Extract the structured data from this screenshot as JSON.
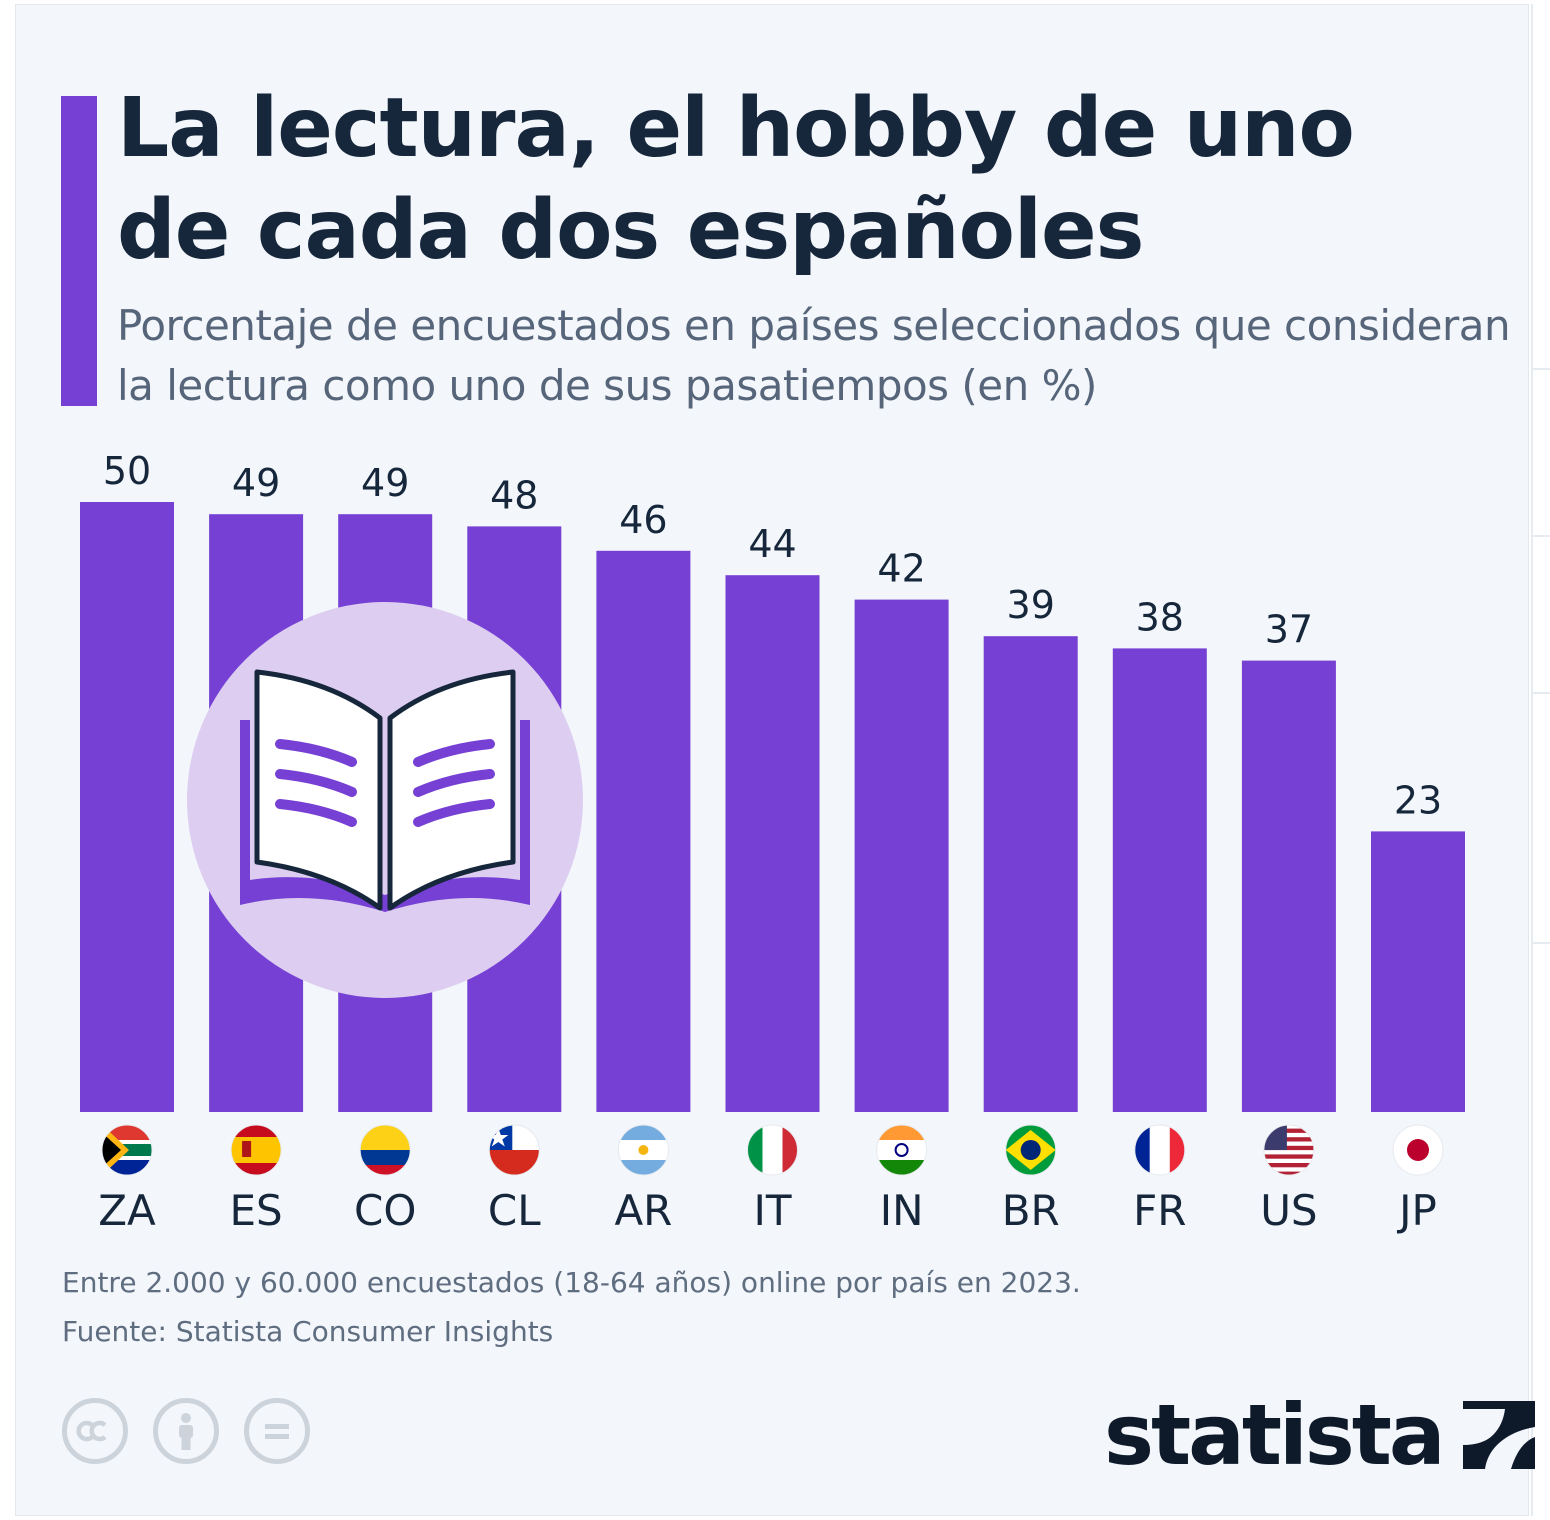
{
  "title": "La lectura, el hobby de uno de cada dos españoles",
  "subtitle": "Porcentaje de encuestados en países seleccionados que consideran la lectura como uno de sus pasatiempos (en %)",
  "chart_data": {
    "type": "bar",
    "title": "La lectura, el hobby de uno de cada dos españoles",
    "subtitle": "Porcentaje de encuestados en países seleccionados que consideran la lectura como uno de sus pasatiempos (en %)",
    "categories": [
      "ZA",
      "ES",
      "CO",
      "CL",
      "AR",
      "IT",
      "IN",
      "BR",
      "FR",
      "US",
      "JP"
    ],
    "values": [
      50,
      49,
      49,
      48,
      46,
      44,
      42,
      39,
      38,
      37,
      23
    ],
    "ylim": [
      0,
      50
    ],
    "grid": false,
    "bar_color": "#7540d3"
  },
  "footer": {
    "note": "Entre 2.000 y 60.000 encuestados (18-64 años) online por país en 2023.",
    "source": "Fuente: Statista Consumer Insights"
  },
  "brand": {
    "name": "statista"
  },
  "icons": {
    "illustration": "open-book-icon",
    "license": [
      "creative-commons-icon",
      "attribution-person-icon",
      "no-derivatives-equals-icon"
    ]
  },
  "colors": {
    "accent": "#7540d3",
    "title": "#16263b",
    "subtitle": "#56657a",
    "background": "#f3f6fa",
    "illustration_circle": "#dccdf1"
  }
}
